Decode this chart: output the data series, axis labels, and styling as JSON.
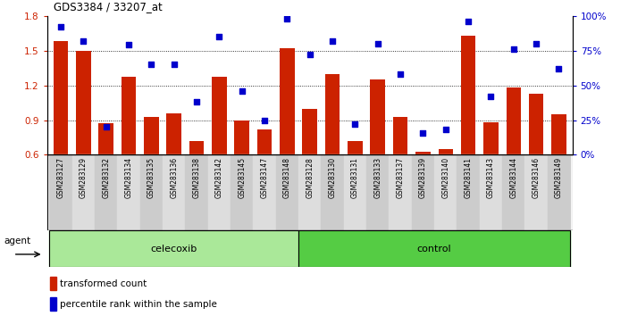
{
  "title": "GDS3384 / 33207_at",
  "samples": [
    "GSM283127",
    "GSM283129",
    "GSM283132",
    "GSM283134",
    "GSM283135",
    "GSM283136",
    "GSM283138",
    "GSM283142",
    "GSM283145",
    "GSM283147",
    "GSM283148",
    "GSM283128",
    "GSM283130",
    "GSM283131",
    "GSM283133",
    "GSM283137",
    "GSM283139",
    "GSM283140",
    "GSM283141",
    "GSM283143",
    "GSM283144",
    "GSM283146",
    "GSM283149"
  ],
  "bar_values": [
    1.58,
    1.5,
    0.87,
    1.27,
    0.93,
    0.96,
    0.72,
    1.27,
    0.9,
    0.82,
    1.52,
    1.0,
    1.3,
    0.72,
    1.25,
    0.93,
    0.63,
    0.65,
    1.63,
    0.88,
    1.18,
    1.13,
    0.95
  ],
  "blue_values": [
    92,
    82,
    20,
    79,
    65,
    65,
    38,
    85,
    46,
    25,
    98,
    72,
    82,
    22,
    80,
    58,
    16,
    18,
    96,
    42,
    76,
    80,
    62
  ],
  "celecoxib_count": 11,
  "control_count": 12,
  "ylim_left": [
    0.6,
    1.8
  ],
  "ylim_right": [
    0,
    100
  ],
  "yticks_left": [
    0.6,
    0.9,
    1.2,
    1.5,
    1.8
  ],
  "yticks_right": [
    0,
    25,
    50,
    75,
    100
  ],
  "ytick_labels_right": [
    "0%",
    "25%",
    "50%",
    "75%",
    "100%"
  ],
  "bar_color": "#cc2200",
  "dot_color": "#0000cc",
  "celecoxib_color": "#aae899",
  "control_color": "#55cc44",
  "bg_color": "#ffffff",
  "hgrid_vals": [
    0.9,
    1.2,
    1.5
  ]
}
